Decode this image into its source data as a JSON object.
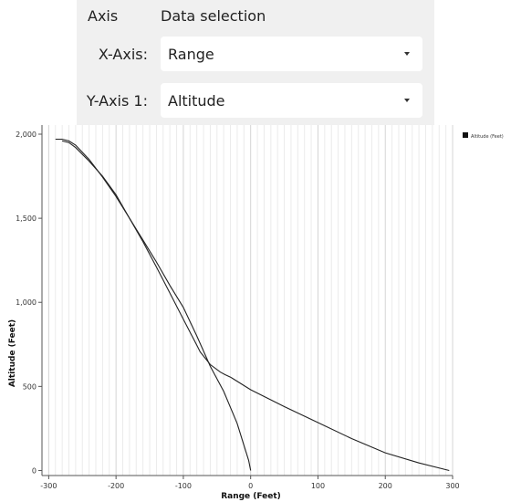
{
  "axis_panel": {
    "header_axis": "Axis",
    "header_data": "Data selection",
    "x_label": "X-Axis:",
    "x_value": "Range",
    "y_label": "Y-Axis 1:",
    "y_value": "Altitude"
  },
  "chart_data": {
    "type": "line",
    "xlabel": "Range (Feet)",
    "ylabel": "Altitude (Feet)",
    "xlim": [
      -310,
      300
    ],
    "ylim": [
      -30,
      2000
    ],
    "xticks": [
      -300,
      -200,
      -100,
      0,
      100,
      200,
      300
    ],
    "xtick_labels": [
      "-300",
      "-200",
      "-100",
      "0",
      "100",
      "200",
      "300"
    ],
    "yticks": [
      0,
      500,
      1000,
      1500,
      2000
    ],
    "ytick_labels": [
      "0",
      "500",
      "1,000",
      "1,500",
      "2,000"
    ],
    "grid": "vertical",
    "legend_position": "top-right",
    "line_color": "#222222",
    "series": [
      {
        "name": "Altitude (Feet)",
        "x": [
          -290,
          -280,
          -270,
          -260,
          -240,
          -220,
          -200,
          -180,
          -160,
          -140,
          -120,
          -100,
          -80,
          -75,
          -60,
          -45,
          -38,
          -30,
          0,
          50,
          100,
          150,
          200,
          250,
          295
        ],
        "y": [
          1970,
          1970,
          1960,
          1935,
          1850,
          1745,
          1630,
          1500,
          1360,
          1210,
          1055,
          900,
          745,
          705,
          630,
          585,
          570,
          555,
          480,
          380,
          285,
          190,
          105,
          45,
          0
        ]
      },
      {
        "name": "",
        "x": [
          -280,
          -270,
          -260,
          -240,
          -220,
          -200,
          -180,
          -160,
          -140,
          -120,
          -100,
          -80,
          -60,
          -40,
          -20,
          -10,
          -3,
          0
        ],
        "y": [
          1960,
          1950,
          1920,
          1840,
          1750,
          1640,
          1500,
          1370,
          1240,
          1100,
          970,
          800,
          620,
          470,
          280,
          150,
          60,
          0
        ]
      }
    ]
  }
}
